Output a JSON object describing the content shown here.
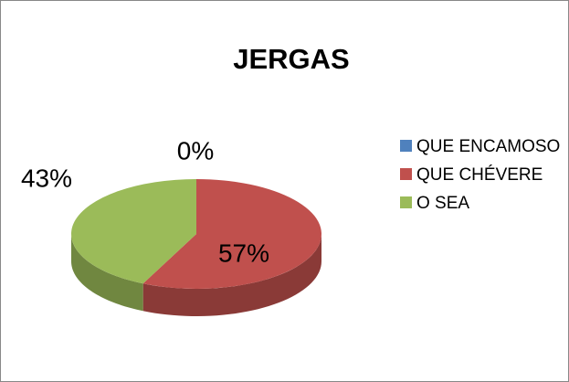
{
  "chart_data": {
    "type": "pie",
    "title": "JERGAS",
    "categories": [
      "QUE ENCAMOSO",
      "QUE CHÉVERE",
      "O SEA"
    ],
    "values": [
      0,
      57,
      43
    ],
    "value_labels": [
      "0%",
      "57%",
      "43%"
    ],
    "colors": [
      "#4f81bd",
      "#c0504d",
      "#9bbb59"
    ],
    "legend": "right"
  }
}
